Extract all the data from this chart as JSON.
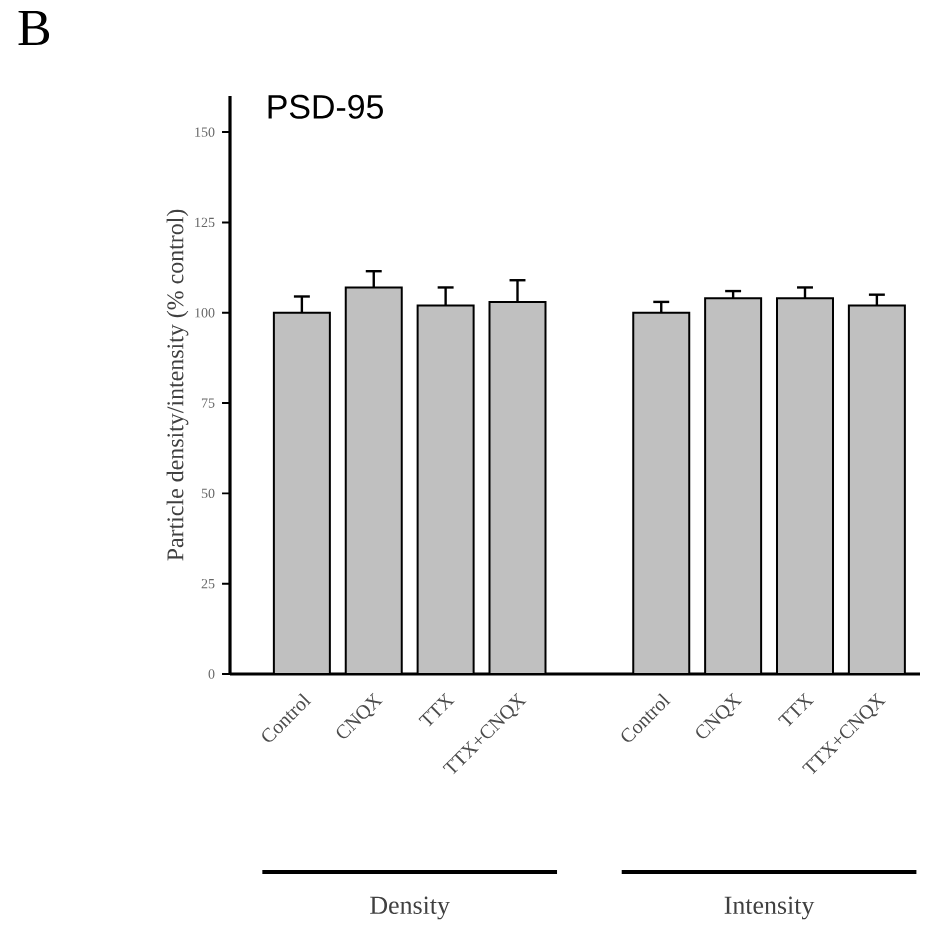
{
  "chart_data": {
    "type": "bar",
    "title": "PSD-95",
    "ylabel": "Particle density/intensity (% control)",
    "categories": [
      "Control",
      "CNQX",
      "TTX",
      "TTX+CNQX",
      "Control",
      "CNQX",
      "TTX",
      "TTX+CNQX"
    ],
    "values": [
      100,
      107,
      102,
      103,
      100,
      104,
      104,
      102
    ],
    "errors": [
      4.5,
      4.5,
      5,
      6,
      3,
      2,
      3,
      3
    ],
    "color": "#c0c0c0",
    "ylim": [
      0,
      160
    ],
    "yticks": [
      0,
      25,
      50,
      75,
      100,
      125,
      150
    ],
    "annotations": [
      "B",
      "Density",
      "Intensity"
    ]
  }
}
